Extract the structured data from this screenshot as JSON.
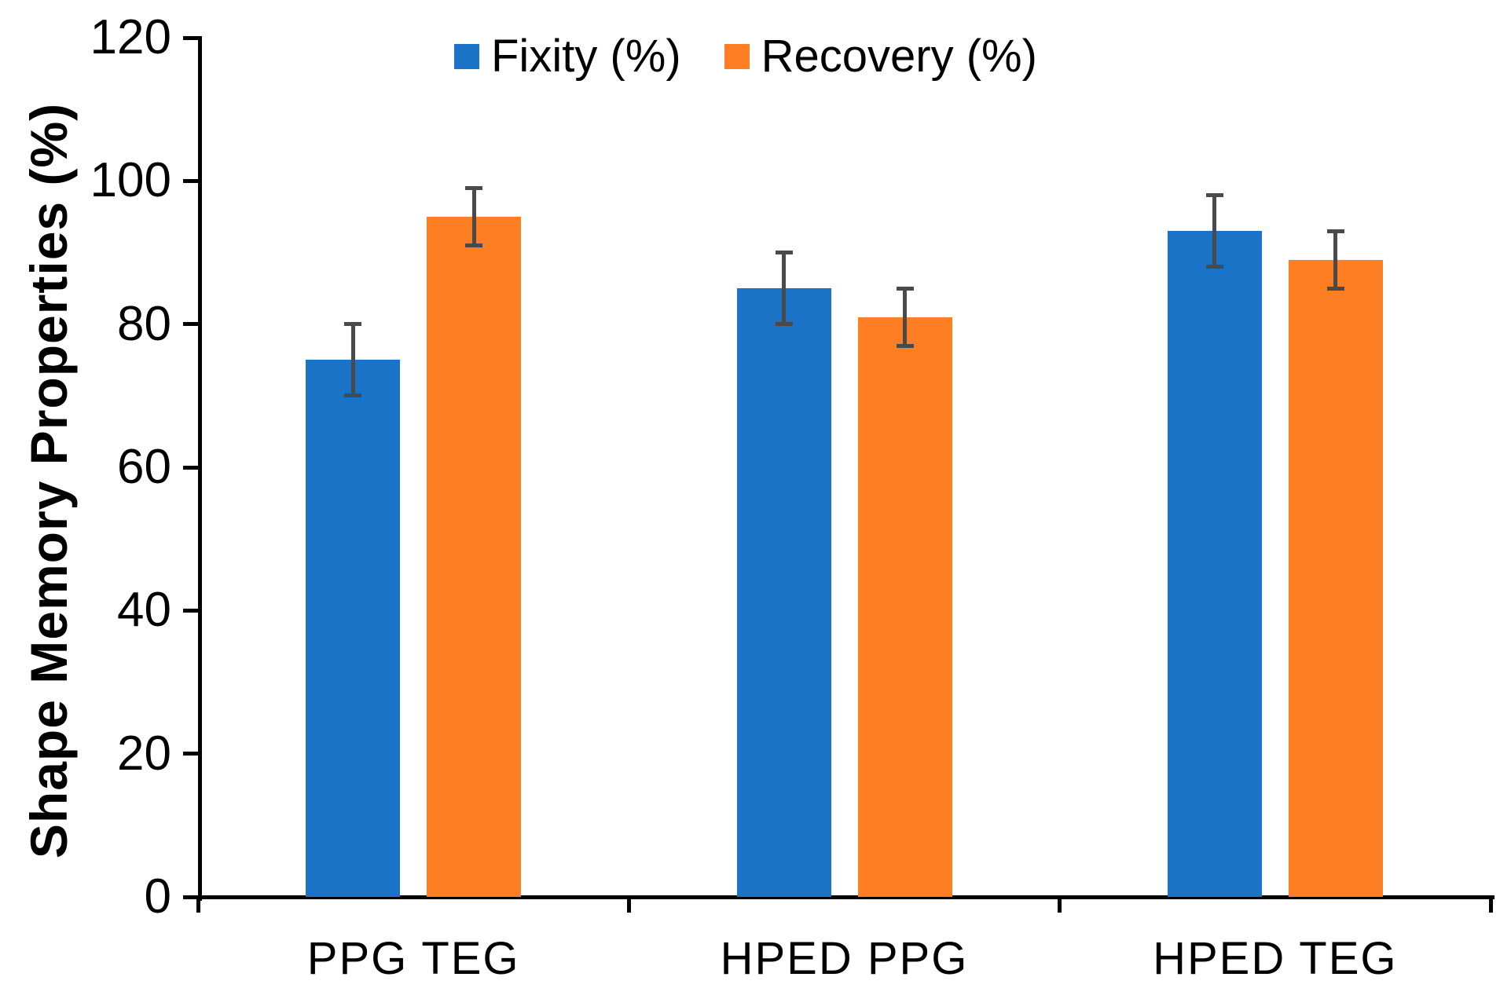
{
  "chart_data": {
    "type": "bar",
    "categories": [
      "PPG TEG",
      "HPED PPG",
      "HPED TEG"
    ],
    "series": [
      {
        "name": "Fixity (%)",
        "color": "#1b73c8",
        "values": [
          75,
          85,
          93
        ],
        "errors": [
          5,
          5,
          5
        ]
      },
      {
        "name": "Recovery (%)",
        "color": "#fd7e23",
        "values": [
          95,
          81,
          89
        ],
        "errors": [
          4,
          4,
          4
        ]
      }
    ],
    "title": "",
    "xlabel": "",
    "ylabel": "Shape Memory Properties (%)",
    "ylim": [
      0,
      120
    ],
    "yticks": [
      0,
      20,
      40,
      60,
      80,
      100,
      120
    ],
    "grid": false,
    "legend_position": "top-center",
    "error_bar_color": "#4a4a4a",
    "axis_color": "#000000",
    "background_color": "#ffffff"
  }
}
